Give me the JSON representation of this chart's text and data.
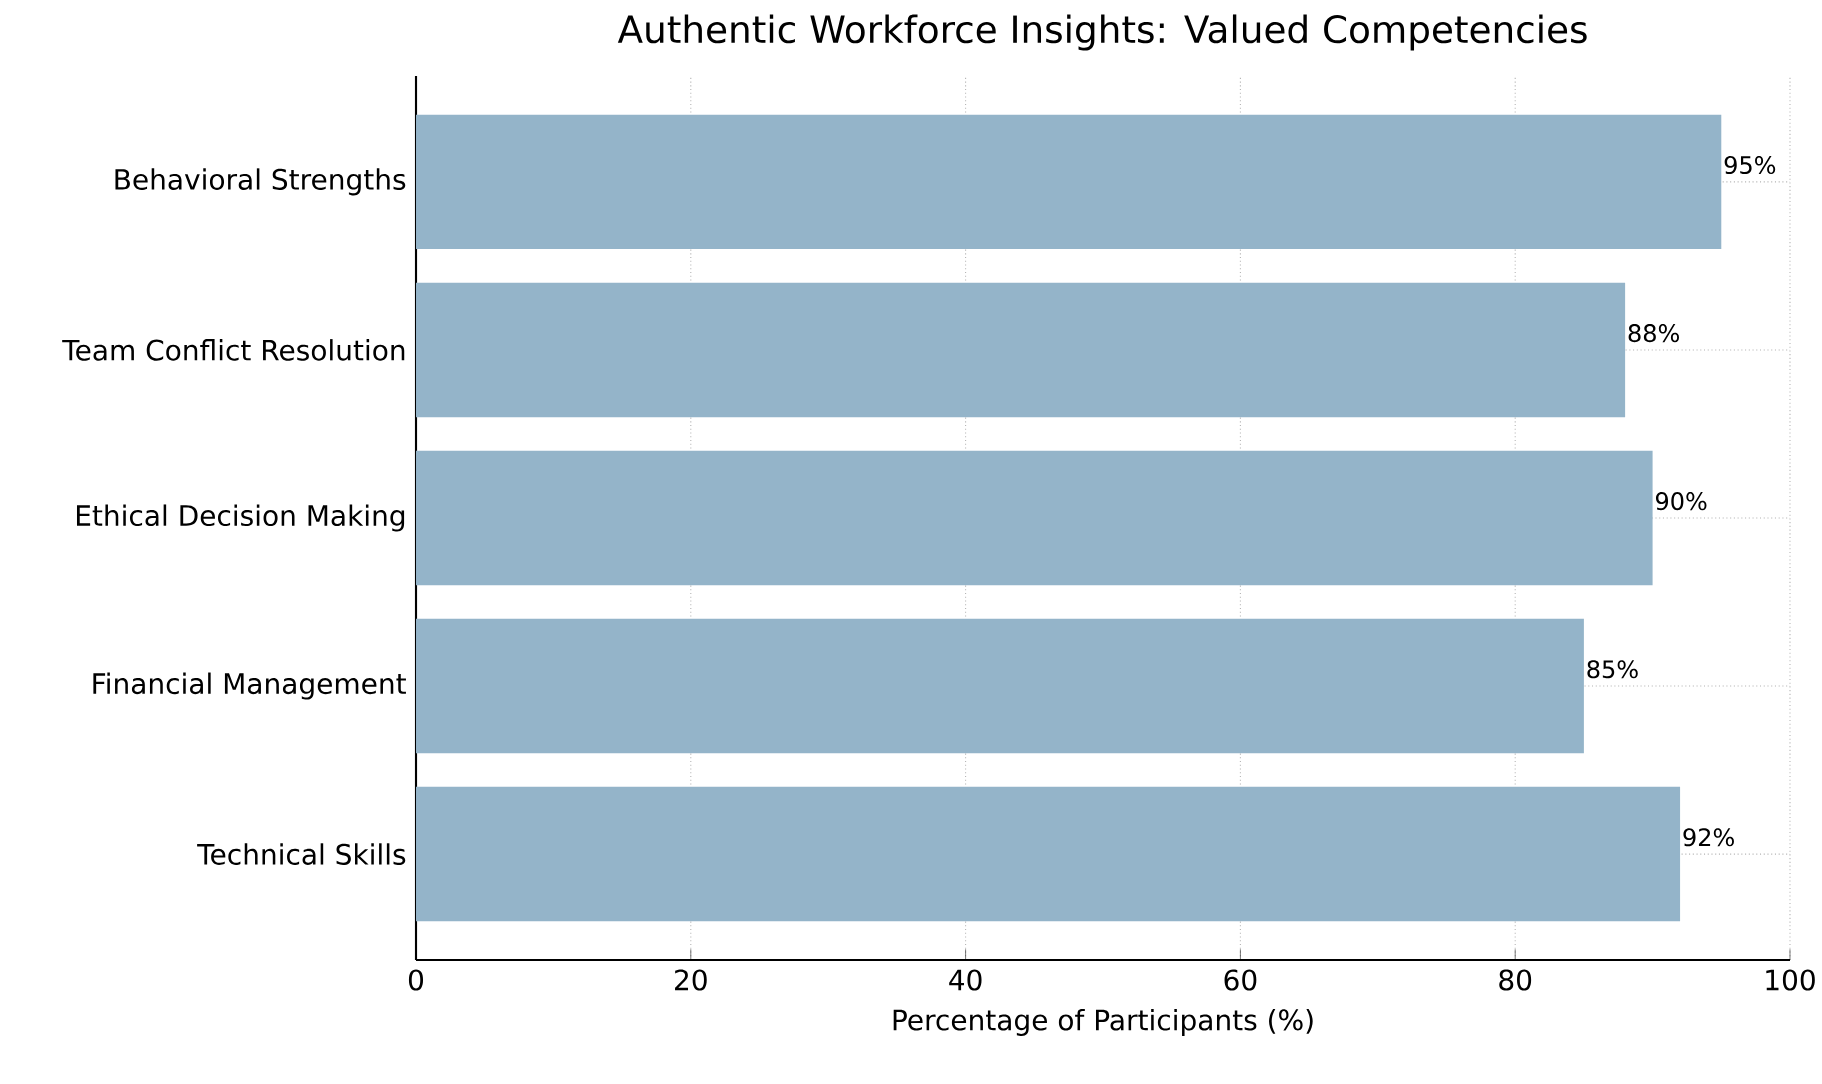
{
  "chart_data": {
    "type": "bar",
    "orientation": "horizontal",
    "title": "Authentic Workforce Insights: Valued Competencies",
    "xlabel": "Percentage of Participants (%)",
    "categories": [
      "Behavioral Strengths",
      "Team Conflict Resolution",
      "Ethical Decision Making",
      "Financial Management",
      "Technical Skills"
    ],
    "values": [
      95,
      88,
      90,
      85,
      92
    ],
    "value_labels": [
      "95%",
      "88%",
      "90%",
      "85%",
      "92%"
    ],
    "color": "#94b4c9",
    "xlim": [
      0,
      100
    ],
    "xticks": [
      0,
      20,
      40,
      60,
      80,
      100
    ],
    "grid": true
  }
}
